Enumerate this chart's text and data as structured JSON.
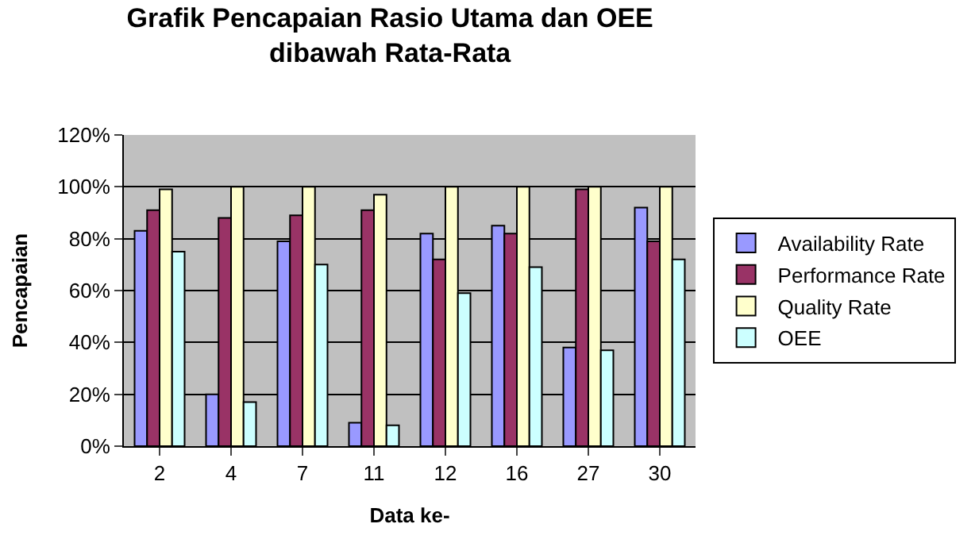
{
  "chart_data": {
    "type": "bar",
    "title": "Grafik Pencapaian Rasio Utama dan OEE\ndibawah Rata-Rata",
    "xlabel": "Data ke-",
    "ylabel": "Pencapaian",
    "categories": [
      "2",
      "4",
      "7",
      "11",
      "12",
      "16",
      "27",
      "30"
    ],
    "series": [
      {
        "name": "Availability Rate",
        "color": "#9999ff",
        "values": [
          83,
          20,
          79,
          9,
          82,
          85,
          38,
          92
        ]
      },
      {
        "name": "Performance Rate",
        "color": "#993366",
        "values": [
          91,
          88,
          89,
          91,
          72,
          82,
          99,
          79
        ]
      },
      {
        "name": "Quality Rate",
        "color": "#ffffcc",
        "values": [
          99,
          100,
          100,
          97,
          100,
          100,
          100,
          100
        ]
      },
      {
        "name": "OEE",
        "color": "#ccffff",
        "values": [
          75,
          17,
          70,
          8,
          59,
          69,
          37,
          72
        ]
      }
    ],
    "ylim": [
      0,
      120
    ],
    "yticks": [
      {
        "value": 0,
        "label": "0%"
      },
      {
        "value": 20,
        "label": "20%"
      },
      {
        "value": 40,
        "label": "40%"
      },
      {
        "value": 60,
        "label": "60%"
      },
      {
        "value": 80,
        "label": "80%"
      },
      {
        "value": 100,
        "label": "100%"
      },
      {
        "value": 120,
        "label": "120%"
      }
    ],
    "grid": "y",
    "legend": "right"
  }
}
